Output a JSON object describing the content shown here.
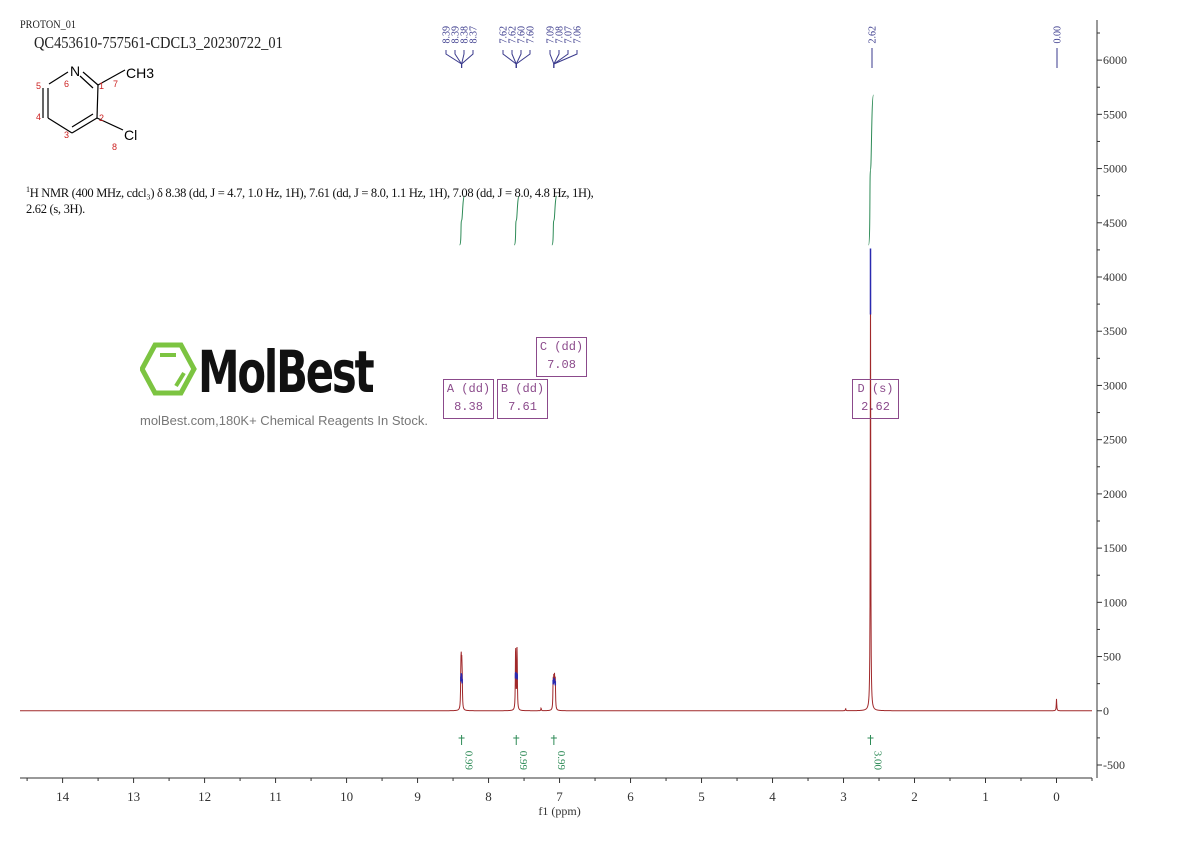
{
  "header": {
    "experiment": "PROTON_01",
    "sample": "QC453610-757561-CDCL3_20230722_01"
  },
  "molecule": {
    "atoms": {
      "N": "N",
      "CH3": "CH3",
      "Cl": "Cl"
    },
    "numbers": [
      "1",
      "2",
      "3",
      "4",
      "5",
      "6",
      "7",
      "8"
    ]
  },
  "nmr_text": {
    "sup": "1",
    "body": "H NMR (400 MHz, cdcl₃) δ 8.38 (dd, J = 4.7, 1.0 Hz, 1H), 7.61 (dd, J = 8.0, 1.1 Hz, 1H), 7.08 (dd, J = 8.0, 4.8 Hz, 1H), 2.62 (s, 3H)."
  },
  "watermark": {
    "brand": "MolBest",
    "tagline": "molBest.com,180K+ Chemical Reagents In Stock."
  },
  "multiplet_boxes": [
    {
      "label": "A (dd)",
      "shift": "8.38"
    },
    {
      "label": "B (dd)",
      "shift": "7.61"
    },
    {
      "label": "C (dd)",
      "shift": "7.08"
    },
    {
      "label": "D (s)",
      "shift": "2.62"
    }
  ],
  "colors": {
    "spectrum": "#a0282a",
    "peak_tip": "#2a2ab0",
    "integral": "#2e8b57",
    "peak_label": "#3a3a8c",
    "multiplet_box": "#8b4a8b"
  },
  "chart_data": {
    "type": "line",
    "xlabel": "f1 (ppm)",
    "xlim": [
      14.6,
      -0.5
    ],
    "ylim": [
      -620,
      6370
    ],
    "x_ticks": [
      14,
      13,
      12,
      11,
      10,
      9,
      8,
      7,
      6,
      5,
      4,
      3,
      2,
      1,
      0
    ],
    "y_ticks": [
      -500,
      0,
      500,
      1000,
      1500,
      2000,
      2500,
      3000,
      3500,
      4000,
      4500,
      5000,
      5500,
      6000
    ],
    "y_axis_position": "right",
    "grid": false,
    "peaks": [
      {
        "ppm": 8.39,
        "intensity": 300
      },
      {
        "ppm": 8.385,
        "intensity": 330
      },
      {
        "ppm": 8.378,
        "intensity": 320
      },
      {
        "ppm": 8.372,
        "intensity": 280
      },
      {
        "ppm": 7.62,
        "intensity": 330
      },
      {
        "ppm": 7.617,
        "intensity": 340
      },
      {
        "ppm": 7.6,
        "intensity": 330
      },
      {
        "ppm": 7.597,
        "intensity": 320
      },
      {
        "ppm": 7.09,
        "intensity": 270
      },
      {
        "ppm": 7.08,
        "intensity": 290
      },
      {
        "ppm": 7.07,
        "intensity": 280
      },
      {
        "ppm": 7.06,
        "intensity": 260
      },
      {
        "ppm": 7.26,
        "intensity": 25
      },
      {
        "ppm": 2.62,
        "intensity": 4060
      },
      {
        "ppm": 2.97,
        "intensity": 20
      },
      {
        "ppm": 0.0,
        "intensity": 110
      }
    ],
    "peak_labels": [
      {
        "group": [
          "8.39",
          "8.39",
          "8.38",
          "8.37"
        ],
        "center": 8.38
      },
      {
        "group": [
          "7.62",
          "7.62",
          "7.60",
          "7.60"
        ],
        "center": 7.61
      },
      {
        "group": [
          "7.09",
          "7.08",
          "7.07",
          "7.06"
        ],
        "center": 7.08
      },
      {
        "group": [
          "2.62"
        ],
        "center": 2.62
      },
      {
        "group": [
          "0.00"
        ],
        "center": 0.0
      }
    ],
    "integrals": [
      {
        "ppm": 8.38,
        "value": "0.99"
      },
      {
        "ppm": 7.61,
        "value": "0.99"
      },
      {
        "ppm": 7.08,
        "value": "0.99"
      },
      {
        "ppm": 2.62,
        "value": "3.00"
      }
    ]
  }
}
